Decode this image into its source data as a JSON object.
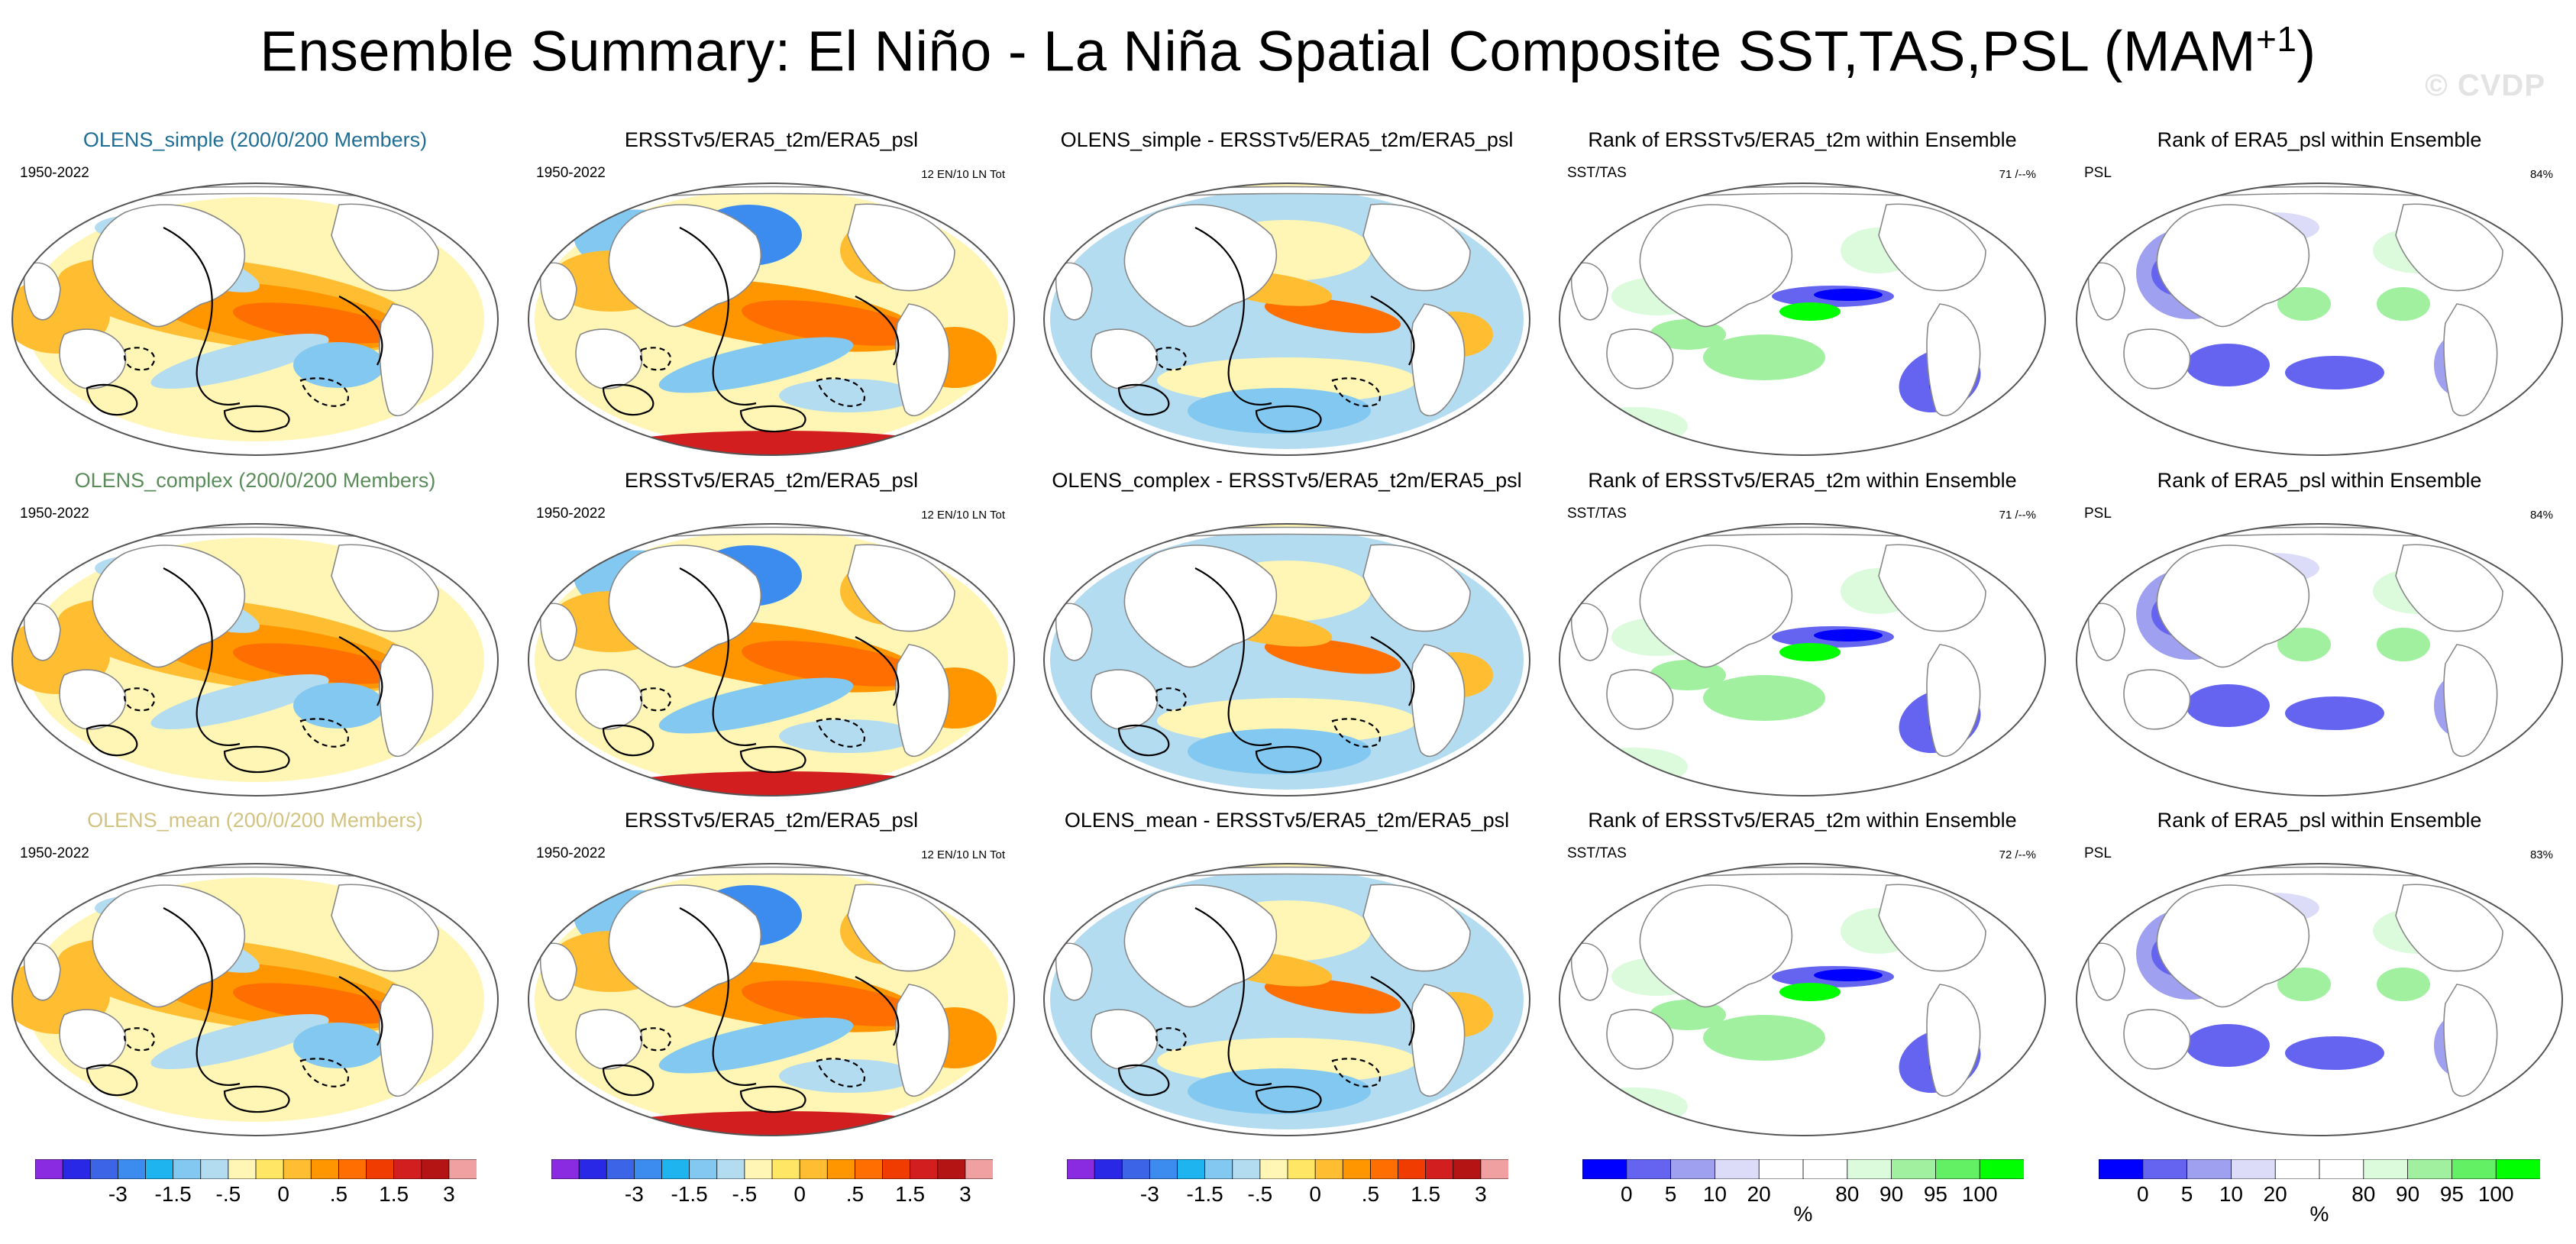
{
  "title": {
    "main": "Ensemble Summary: El Niño - La Niña Spatial Composite SST,TAS,PSL (MAM",
    "superscript": "+1",
    "close": ")"
  },
  "watermark": "© CVDP",
  "rows": [
    {
      "model_title": "OLENS_simple (200/0/200 Members)",
      "model_color": "#1e6e96",
      "obs_title": "ERSSTv5/ERA5_t2m/ERA5_psl",
      "diff_title": "OLENS_simple - ERSSTv5/ERA5_t2m/ERA5_psl",
      "rank_tas_title": "Rank of ERSSTv5/ERA5_t2m within Ensemble",
      "rank_psl_title": "Rank of ERA5_psl within Ensemble",
      "model_period": "1950-2022",
      "obs_period": "1950-2022",
      "obs_events": "12 EN/10 LN Tot",
      "rank_tas_label": "SST/TAS",
      "rank_tas_pct": "71 /--%",
      "rank_psl_label": "PSL",
      "rank_psl_pct": "84%"
    },
    {
      "model_title": "OLENS_complex (200/0/200 Members)",
      "model_color": "#5a8c5a",
      "obs_title": "ERSSTv5/ERA5_t2m/ERA5_psl",
      "diff_title": "OLENS_complex - ERSSTv5/ERA5_t2m/ERA5_psl",
      "rank_tas_title": "Rank of ERSSTv5/ERA5_t2m within Ensemble",
      "rank_psl_title": "Rank of ERA5_psl within Ensemble",
      "model_period": "1950-2022",
      "obs_period": "1950-2022",
      "obs_events": "12 EN/10 LN Tot",
      "rank_tas_label": "SST/TAS",
      "rank_tas_pct": "71 /--%",
      "rank_psl_label": "PSL",
      "rank_psl_pct": "84%"
    },
    {
      "model_title": "OLENS_mean (200/0/200 Members)",
      "model_color": "#d2c382",
      "obs_title": "ERSSTv5/ERA5_t2m/ERA5_psl",
      "diff_title": "OLENS_mean - ERSSTv5/ERA5_t2m/ERA5_psl",
      "rank_tas_title": "Rank of ERSSTv5/ERA5_t2m within Ensemble",
      "rank_psl_title": "Rank of ERA5_psl within Ensemble",
      "model_period": "1950-2022",
      "obs_period": "1950-2022",
      "obs_events": "12 EN/10 LN Tot",
      "rank_tas_label": "SST/TAS",
      "rank_tas_pct": "72 /--%",
      "rank_psl_label": "PSL",
      "rank_psl_pct": "83%"
    }
  ],
  "colorbars": {
    "anomaly": {
      "colors": [
        "#8a2be2",
        "#2828e6",
        "#3c64e6",
        "#3c8cf0",
        "#1eb4f0",
        "#82c8f0",
        "#b4dcf0",
        "#fff5b4",
        "#ffe664",
        "#ffbe32",
        "#ff9600",
        "#ff6e00",
        "#f03c00",
        "#d21e1e",
        "#b41414",
        "#f0a0a0"
      ],
      "labels": [
        "-3",
        "-1.5",
        "-.5",
        "0",
        ".5",
        "1.5",
        "3"
      ],
      "label_bounds": [
        3,
        5,
        7,
        9,
        11,
        13,
        15
      ]
    },
    "rank": {
      "colors": [
        "#0000ff",
        "#6464f0",
        "#a0a0f0",
        "#dcdcf8",
        "#ffffff",
        "#ffffff",
        "#dcfadc",
        "#a0f0a0",
        "#64f064",
        "#00ff00"
      ],
      "labels": [
        "0",
        "5",
        "10",
        "20",
        "80",
        "90",
        "95",
        "100"
      ],
      "label_bounds": [
        1,
        2,
        3,
        4,
        6,
        7,
        8,
        9
      ],
      "unit": "%"
    }
  },
  "map_colors": {
    "land": "#ffffff",
    "coast": "#888888",
    "border": "#555555",
    "warm1": "#fff5b4",
    "warm2": "#ffbe32",
    "warm3": "#ff9600",
    "warm4": "#ff6e00",
    "warm5": "#d21e1e",
    "cool1": "#b4dcf0",
    "cool2": "#82c8f0",
    "cool3": "#3c8cf0",
    "rank_blue1": "#dcdcf8",
    "rank_blue2": "#a0a0f0",
    "rank_blue3": "#6464f0",
    "rank_blue4": "#0000ff",
    "rank_green1": "#dcfadc",
    "rank_green2": "#a0f0a0",
    "rank_green3": "#00ff00"
  }
}
